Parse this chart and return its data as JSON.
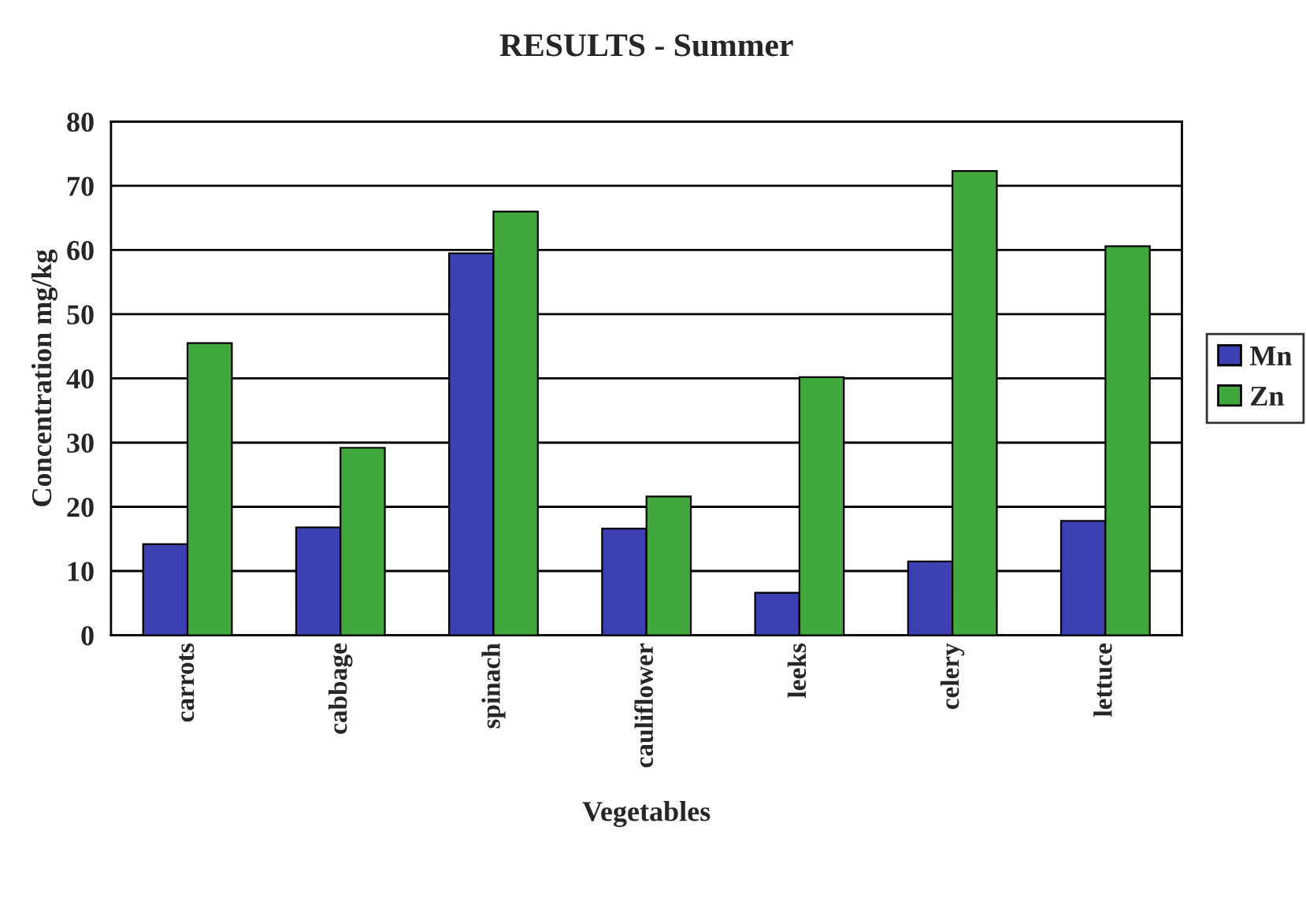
{
  "chart_data": {
    "type": "bar",
    "title": "RESULTS - Summer",
    "xlabel": "Vegetables",
    "ylabel": "Concentration mg/kg",
    "categories": [
      "carrots",
      "cabbage",
      "spinach",
      "cauliflower",
      "leeks",
      "celery",
      "lettuce"
    ],
    "series": [
      {
        "name": "Mn",
        "color": "#3c40b0",
        "values": [
          14.2,
          16.8,
          59.5,
          16.6,
          6.6,
          11.5,
          17.8
        ]
      },
      {
        "name": "Zn",
        "color": "#40a83c",
        "values": [
          45.5,
          29.2,
          66,
          21.6,
          40.2,
          72.3,
          60.6
        ]
      }
    ],
    "ylim": [
      0,
      80
    ],
    "yticks": [
      0,
      10,
      20,
      30,
      40,
      50,
      60,
      70,
      80
    ],
    "grid": "y",
    "legend": "right"
  }
}
